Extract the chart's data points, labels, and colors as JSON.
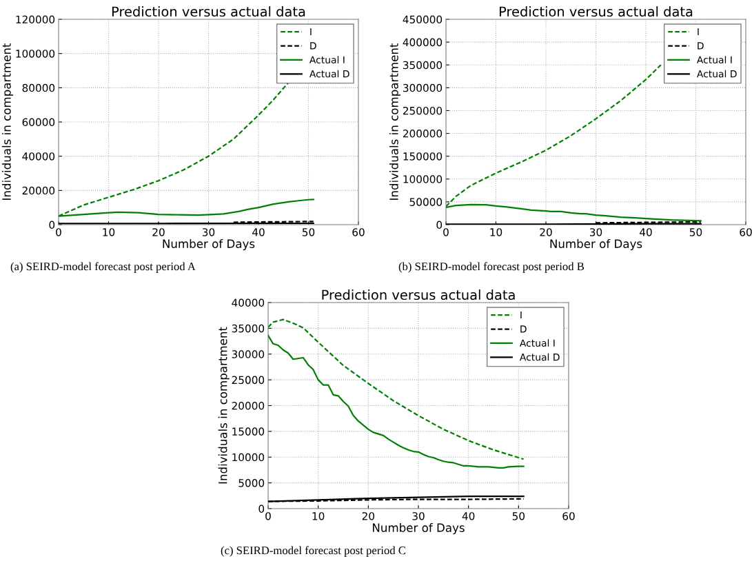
{
  "chart_data": [
    {
      "type": "line",
      "title": "Prediction versus actual data",
      "xlabel": "Number of Days",
      "ylabel": "Individuals in compartment",
      "xlim": [
        0,
        60
      ],
      "xticks": [
        0,
        10,
        20,
        30,
        40,
        50,
        60
      ],
      "ylim": [
        0,
        120000
      ],
      "yticks": [
        0,
        20000,
        40000,
        60000,
        80000,
        100000,
        120000
      ],
      "grid": true,
      "legend": "top right",
      "annotations": [
        "(a) SEIRD-model forecast post period A"
      ],
      "series": [
        {
          "name": "I",
          "color": "#008000",
          "line_style": "dashed",
          "x": [
            0,
            5,
            10,
            15,
            20,
            25,
            30,
            35,
            40,
            43,
            46
          ],
          "values": [
            5000,
            11500,
            16000,
            20500,
            25700,
            32000,
            40000,
            50000,
            64000,
            73000,
            83000
          ]
        },
        {
          "name": "D",
          "color": "#000000",
          "line_style": "dashed",
          "x": [
            35,
            40,
            45,
            51
          ],
          "values": [
            1400,
            1600,
            1700,
            1900
          ]
        },
        {
          "name": "Actual I",
          "color": "#008000",
          "line_style": "solid",
          "x": [
            0,
            5,
            10,
            12,
            16,
            20,
            24,
            28,
            31,
            33,
            36,
            38,
            40,
            43,
            46,
            48,
            50,
            51
          ],
          "values": [
            5000,
            6000,
            7000,
            7300,
            7000,
            6000,
            5800,
            5600,
            6000,
            6300,
            7700,
            9000,
            10000,
            12000,
            13300,
            14000,
            14600,
            14700
          ]
        },
        {
          "name": "Actual D",
          "color": "#000000",
          "line_style": "solid",
          "x": [
            0,
            20,
            40,
            51
          ],
          "values": [
            700,
            700,
            800,
            800
          ]
        }
      ]
    },
    {
      "type": "line",
      "title": "Prediction versus actual data",
      "xlabel": "Number of Days",
      "ylabel": "Individuals in compartment",
      "xlim": [
        0,
        60
      ],
      "xticks": [
        0,
        10,
        20,
        30,
        40,
        50,
        60
      ],
      "ylim": [
        0,
        450000
      ],
      "yticks": [
        0,
        50000,
        100000,
        150000,
        200000,
        250000,
        300000,
        350000,
        400000,
        450000
      ],
      "grid": true,
      "legend": "top right",
      "annotations": [
        "(b) SEIRD-model forecast post period B"
      ],
      "series": [
        {
          "name": "I",
          "color": "#008000",
          "line_style": "dashed",
          "x": [
            0,
            2,
            5,
            10,
            15,
            20,
            25,
            30,
            35,
            40,
            43
          ],
          "values": [
            40000,
            62000,
            86000,
            113000,
            137000,
            163000,
            195000,
            232000,
            272000,
            318000,
            350000
          ]
        },
        {
          "name": "D",
          "color": "#000000",
          "line_style": "dashed",
          "x": [
            30,
            40,
            45,
            51
          ],
          "values": [
            4000,
            5000,
            5500,
            6000
          ]
        },
        {
          "name": "Actual I",
          "color": "#008000",
          "line_style": "solid",
          "x": [
            0,
            2,
            5,
            8,
            10,
            12,
            15,
            17,
            20,
            21,
            23,
            25,
            27,
            28,
            30,
            32,
            35,
            38,
            40,
            45,
            51
          ],
          "values": [
            38000,
            42000,
            44000,
            43500,
            41000,
            39000,
            35000,
            32000,
            30000,
            29000,
            29000,
            26000,
            24000,
            24000,
            21000,
            19500,
            16500,
            15000,
            13500,
            10500,
            8500
          ]
        },
        {
          "name": "Actual D",
          "color": "#000000",
          "line_style": "solid",
          "x": [
            0,
            20,
            40,
            51
          ],
          "values": [
            1000,
            1000,
            2000,
            2000
          ]
        }
      ]
    },
    {
      "type": "line",
      "title": "Prediction versus actual data",
      "xlabel": "Number of Days",
      "ylabel": "Individuals in compartment",
      "xlim": [
        0,
        60
      ],
      "xticks": [
        0,
        10,
        20,
        30,
        40,
        50,
        60
      ],
      "ylim": [
        0,
        40000
      ],
      "yticks": [
        0,
        5000,
        10000,
        15000,
        20000,
        25000,
        30000,
        35000,
        40000
      ],
      "grid": true,
      "legend": "top right",
      "annotations": [
        "(c) SEIRD-model forecast post period C"
      ],
      "series": [
        {
          "name": "I",
          "color": "#008000",
          "line_style": "dashed",
          "x": [
            0,
            1,
            3,
            5,
            7,
            10,
            15,
            20,
            25,
            30,
            35,
            40,
            45,
            51
          ],
          "values": [
            35200,
            36200,
            36700,
            36000,
            35100,
            32300,
            27800,
            24300,
            20950,
            18050,
            15400,
            13200,
            11400,
            9600
          ]
        },
        {
          "name": "D",
          "color": "#000000",
          "line_style": "dashed",
          "x": [
            0,
            10,
            20,
            30,
            40,
            51
          ],
          "values": [
            1400,
            1500,
            1700,
            1800,
            1800,
            1900
          ]
        },
        {
          "name": "Actual I",
          "color": "#008000",
          "line_style": "solid",
          "x": [
            0,
            1,
            2,
            3,
            4,
            5,
            7,
            8,
            9,
            10,
            11,
            12,
            13,
            14,
            15,
            16,
            17,
            18,
            19,
            20,
            21,
            22,
            23,
            24,
            25,
            26,
            27,
            28,
            29,
            30,
            31,
            32,
            33,
            34,
            35,
            36,
            37,
            38,
            39,
            40,
            42,
            43,
            44,
            46,
            47,
            48,
            50,
            51
          ],
          "values": [
            33600,
            32000,
            31700,
            30800,
            30200,
            29000,
            29300,
            27900,
            27000,
            25000,
            24000,
            24000,
            22100,
            21900,
            20800,
            19900,
            18100,
            17000,
            16200,
            15400,
            14800,
            14500,
            14200,
            13500,
            12900,
            12300,
            11800,
            11400,
            11100,
            11000,
            10500,
            10100,
            9900,
            9500,
            9200,
            9000,
            8900,
            8600,
            8300,
            8300,
            8100,
            8100,
            8100,
            7900,
            7900,
            8100,
            8200,
            8200
          ]
        },
        {
          "name": "Actual D",
          "color": "#000000",
          "line_style": "solid",
          "x": [
            0,
            10,
            20,
            30,
            40,
            51
          ],
          "values": [
            1400,
            1700,
            2000,
            2200,
            2400,
            2400
          ]
        }
      ]
    }
  ]
}
